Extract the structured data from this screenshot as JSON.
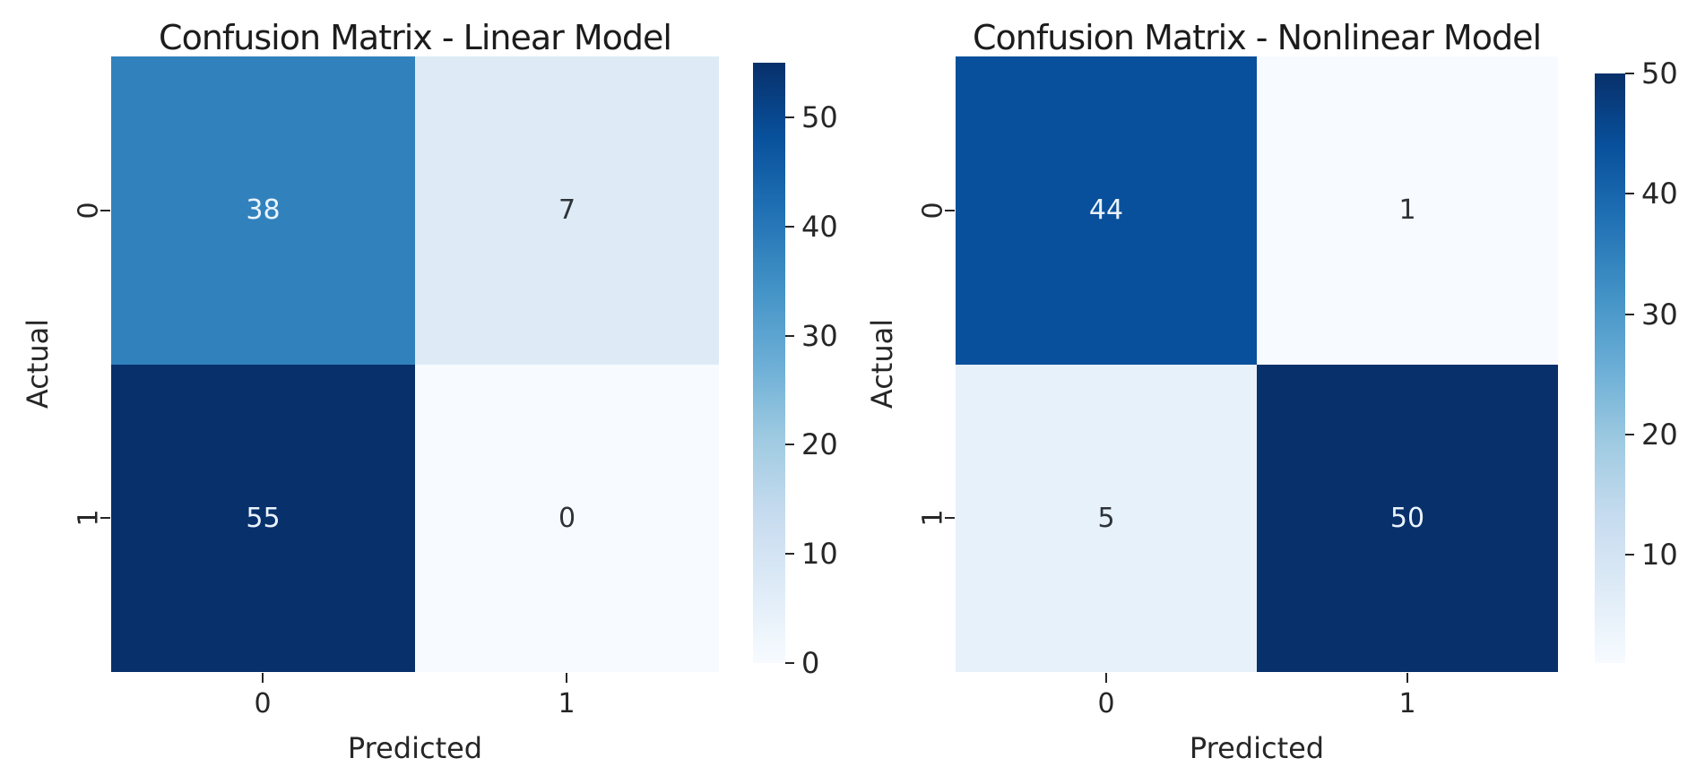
{
  "figure": {
    "background": "#ffffff"
  },
  "colors": {
    "colormap": "Blues",
    "colormap_low": "#f7fbff",
    "colormap_high": "#08306b",
    "cell_38": "#3181bd",
    "cell_7": "#ddeaf7",
    "cell_55": "#08306b",
    "cell_0": "#f7fbff",
    "cell_44": "#09509b",
    "cell_1": "#f7fbff",
    "cell_5": "#e7f0fa",
    "cell_50": "#08306b",
    "annotation_light": "#eaf3fb",
    "annotation_dark": "#2e3338",
    "tick_text": "#262626",
    "title_text": "#1c1c1c"
  },
  "chart_data": [
    {
      "type": "heatmap",
      "title": "Confusion Matrix - Linear Model",
      "xlabel": "Predicted",
      "ylabel": "Actual",
      "x_tick_labels": [
        "0",
        "1"
      ],
      "y_tick_labels": [
        "0",
        "1"
      ],
      "matrix": [
        [
          38,
          7
        ],
        [
          55,
          0
        ]
      ],
      "annotations": [
        [
          "38",
          "7"
        ],
        [
          "55",
          "0"
        ]
      ],
      "colormap": "Blues",
      "vmin": 0,
      "vmax": 55,
      "colorbar_ticks": [
        0,
        10,
        20,
        30,
        40,
        50
      ],
      "colorbar_tick_labels": [
        "0",
        "10",
        "20",
        "30",
        "40",
        "50"
      ],
      "legend_position": "right-colorbar",
      "grid": false
    },
    {
      "type": "heatmap",
      "title": "Confusion Matrix - Nonlinear Model",
      "xlabel": "Predicted",
      "ylabel": "Actual",
      "x_tick_labels": [
        "0",
        "1"
      ],
      "y_tick_labels": [
        "0",
        "1"
      ],
      "matrix": [
        [
          44,
          1
        ],
        [
          5,
          50
        ]
      ],
      "annotations": [
        [
          "44",
          "1"
        ],
        [
          "5",
          "50"
        ]
      ],
      "colormap": "Blues",
      "vmin": 1,
      "vmax": 50,
      "colorbar_ticks": [
        10,
        20,
        30,
        40,
        50
      ],
      "colorbar_tick_labels": [
        "10",
        "20",
        "30",
        "40",
        "50"
      ],
      "legend_position": "right-colorbar",
      "grid": false
    }
  ]
}
